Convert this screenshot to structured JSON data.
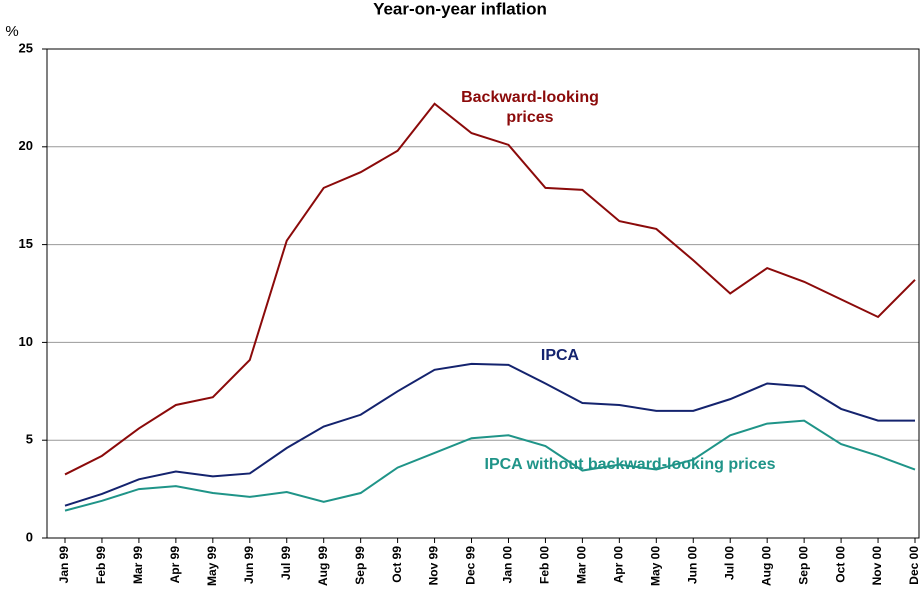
{
  "chart_data": {
    "type": "line",
    "title": "Year-on-year inflation",
    "y_unit": "%",
    "categories": [
      "Jan 99",
      "Feb 99",
      "Mar 99",
      "Apr 99",
      "May 99",
      "Jun 99",
      "Jul 99",
      "Aug 99",
      "Sep 99",
      "Oct 99",
      "Nov 99",
      "Dec 99",
      "Jan 00",
      "Feb 00",
      "Mar 00",
      "Apr 00",
      "May 00",
      "Jun 00",
      "Jul 00",
      "Aug 00",
      "Sep 00",
      "Oct 00",
      "Nov 00",
      "Dec 00"
    ],
    "series": [
      {
        "name": "Backward-looking prices",
        "color": "#8b0a0a",
        "values": [
          3.25,
          4.2,
          5.6,
          6.8,
          7.2,
          9.1,
          15.2,
          17.9,
          18.7,
          19.8,
          22.2,
          20.7,
          20.1,
          17.9,
          17.8,
          16.2,
          15.8,
          14.2,
          12.5,
          13.8,
          13.1,
          12.2,
          11.3,
          13.2
        ]
      },
      {
        "name": "IPCA",
        "color": "#14236e",
        "values": [
          1.65,
          2.25,
          3.0,
          3.4,
          3.15,
          3.3,
          4.6,
          5.7,
          6.3,
          7.5,
          8.6,
          8.9,
          8.85,
          7.9,
          6.9,
          6.8,
          6.5,
          6.5,
          7.1,
          7.9,
          7.75,
          6.6,
          6.0,
          6.0
        ]
      },
      {
        "name": "IPCA without backward-looking prices",
        "color": "#1f9488",
        "values": [
          1.4,
          1.9,
          2.5,
          2.65,
          2.3,
          2.1,
          2.35,
          1.85,
          2.3,
          3.6,
          4.35,
          5.1,
          5.25,
          4.7,
          3.45,
          3.75,
          3.5,
          4.0,
          5.25,
          5.85,
          6.0,
          4.8,
          4.2,
          3.5
        ]
      }
    ],
    "ylim": [
      0,
      25
    ],
    "yticks": [
      0,
      5,
      10,
      15,
      20,
      25
    ],
    "grid": true
  }
}
